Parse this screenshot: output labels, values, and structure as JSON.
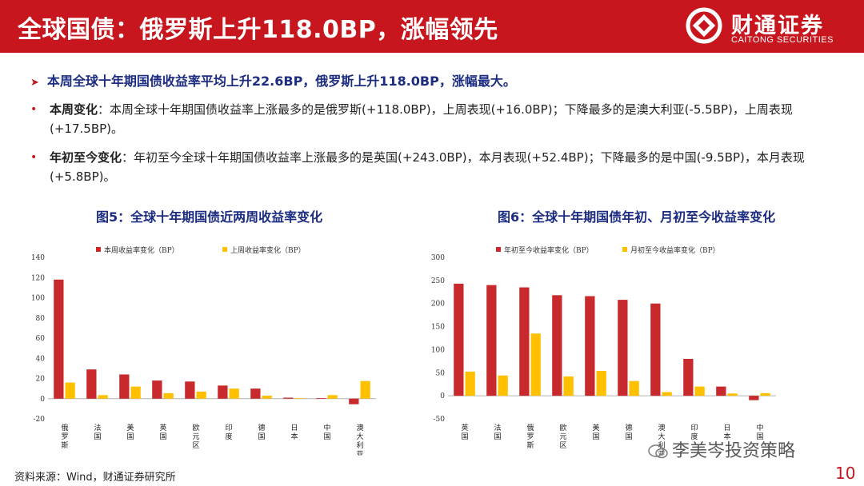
{
  "header": {
    "title": "全球国债：俄罗斯上升118.0BP，涨幅领先",
    "logo_cn": "财通证券",
    "logo_en": "CAITONG SECURITIES"
  },
  "lead": "本周全球十年期国债收益率平均上升22.6BP，俄罗斯上升118.0BP，涨幅最大。",
  "bullets": [
    {
      "label": "本周变化",
      "text": "：本周全球十年期国债收益率上涨最多的是俄罗斯(+118.0BP)，上周表现(+16.0BP)；下降最多的是澳大利亚(-5.5BP)，上周表现(+17.5BP)。"
    },
    {
      "label": "年初至今变化",
      "text": "：年初至今全球十年期国债收益率上涨最多的是英国(+243.0BP)，本月表现(+52.4BP)；下降最多的是中国(-9.5BP)，本月表现(+5.8BP)。"
    }
  ],
  "figures": {
    "fig5_title": "图5：全球十年期国债近两周收益率变化",
    "fig6_title": "图6：全球十年期国债年初、月初至今收益率变化"
  },
  "colors": {
    "red": "#c8292d",
    "yellow": "#ffc000",
    "brand": "#c7161e",
    "navy": "#1c2c80"
  },
  "chart_data": [
    {
      "type": "bar",
      "categories": [
        "俄罗斯",
        "法国",
        "美国",
        "英国",
        "欧元区",
        "印度",
        "德国",
        "日本",
        "中国",
        "澳大利亚"
      ],
      "series": [
        {
          "name": "本周收益率变化（BP）",
          "values": [
            118.0,
            29.0,
            24.0,
            18.0,
            17.0,
            13.0,
            10.0,
            1.0,
            0.5,
            -5.5
          ]
        },
        {
          "name": "上周收益率变化（BP）",
          "values": [
            16.0,
            3.5,
            12.0,
            5.5,
            7.0,
            10.0,
            3.0,
            0.5,
            3.5,
            17.5
          ]
        }
      ],
      "ylim": [
        -20,
        140
      ],
      "yticks": [
        -20,
        0,
        20,
        40,
        60,
        80,
        100,
        120,
        140
      ],
      "legend": "top"
    },
    {
      "type": "bar",
      "categories": [
        "英国",
        "法国",
        "俄罗斯",
        "欧元区",
        "美国",
        "德国",
        "澳大利亚",
        "印度",
        "日本",
        "中国"
      ],
      "series": [
        {
          "name": "年初至今收益率变化（BP）",
          "values": [
            243.0,
            240.0,
            235.0,
            218.0,
            216.0,
            208.0,
            200.0,
            80.0,
            20.0,
            -9.5
          ]
        },
        {
          "name": "月初至今收益率变化（BP）",
          "values": [
            52.4,
            44.0,
            135.0,
            42.0,
            54.0,
            32.0,
            8.0,
            20.0,
            5.0,
            5.8
          ]
        }
      ],
      "ylim": [
        -50,
        300
      ],
      "yticks": [
        -50,
        0,
        50,
        100,
        150,
        200,
        250,
        300
      ],
      "legend": "top"
    }
  ],
  "footer": {
    "source": "资料来源：Wind，财通证券研究所",
    "watermark": "李美岑投资策略",
    "page": "10"
  }
}
